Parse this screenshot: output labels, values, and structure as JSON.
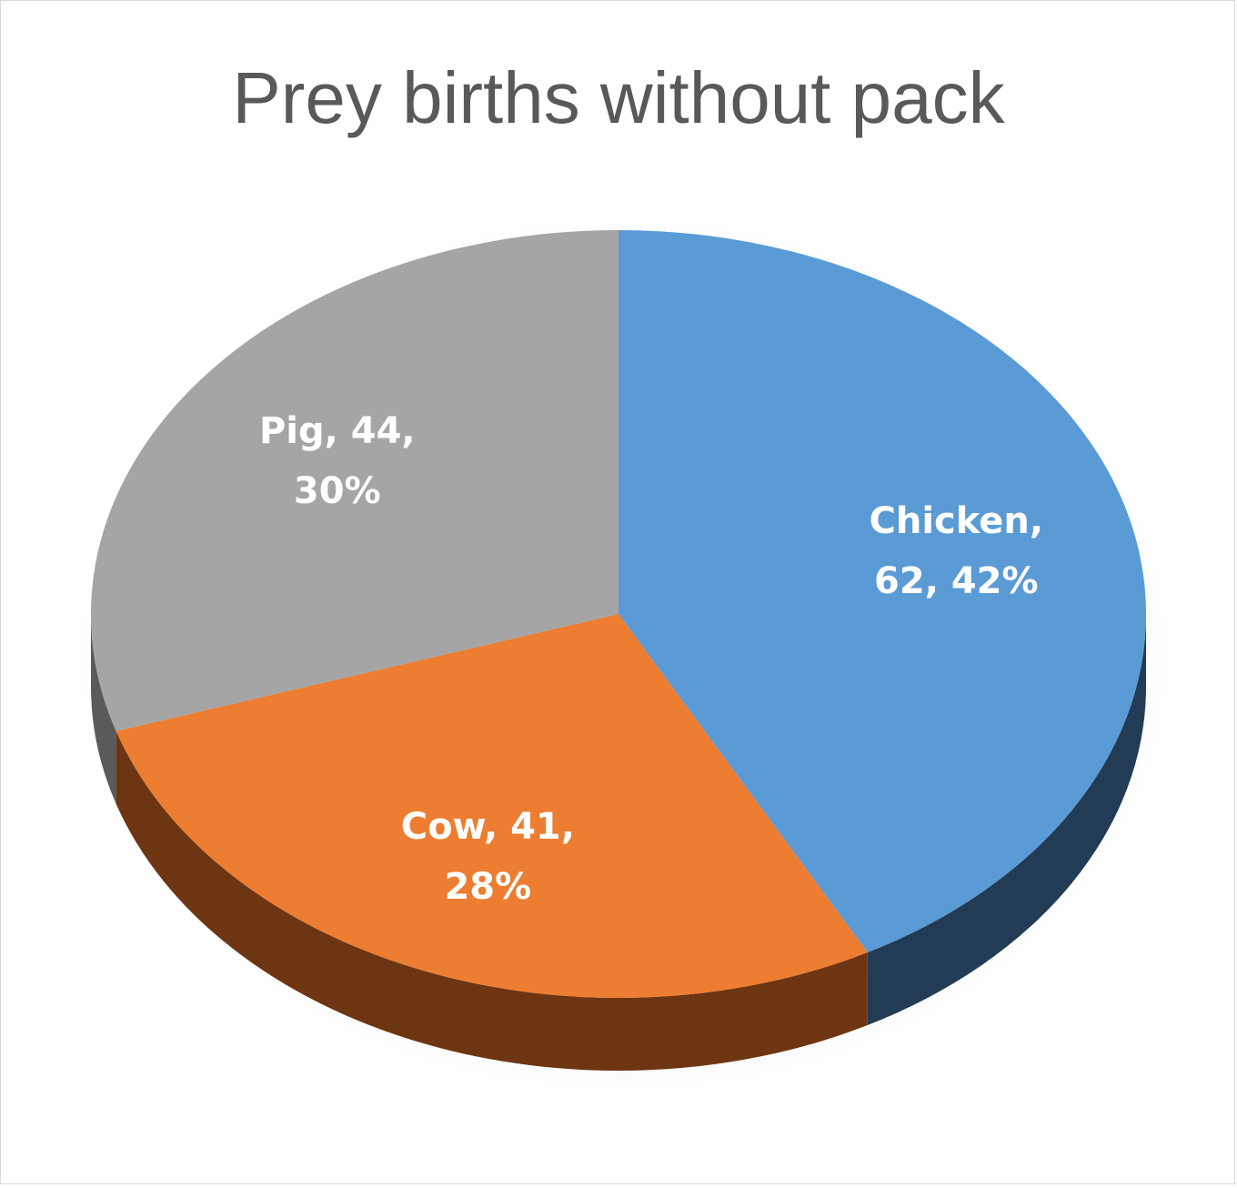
{
  "chart_data": {
    "type": "pie",
    "title": "Prey births without pack",
    "slices": [
      {
        "name": "Chicken",
        "value": 62,
        "percent": "42%",
        "label_lines": [
          "Chicken,",
          "62, 42%"
        ],
        "color": "#5b9bd5",
        "side_color": "#233c55"
      },
      {
        "name": "Cow",
        "value": 41,
        "percent": "28%",
        "label_lines": [
          "Cow, 41,",
          "28%"
        ],
        "color": "#ed7d31",
        "side_color": "#6e3512"
      },
      {
        "name": "Pig",
        "value": 44,
        "percent": "30%",
        "label_lines": [
          "Pig, 44,",
          "30%"
        ],
        "color": "#a5a5a5",
        "side_color": "#5a5a5a"
      }
    ],
    "start_angle_deg": 0,
    "direction": "clockwise",
    "style": "3d",
    "legend": "none",
    "data_labels": "inside"
  }
}
